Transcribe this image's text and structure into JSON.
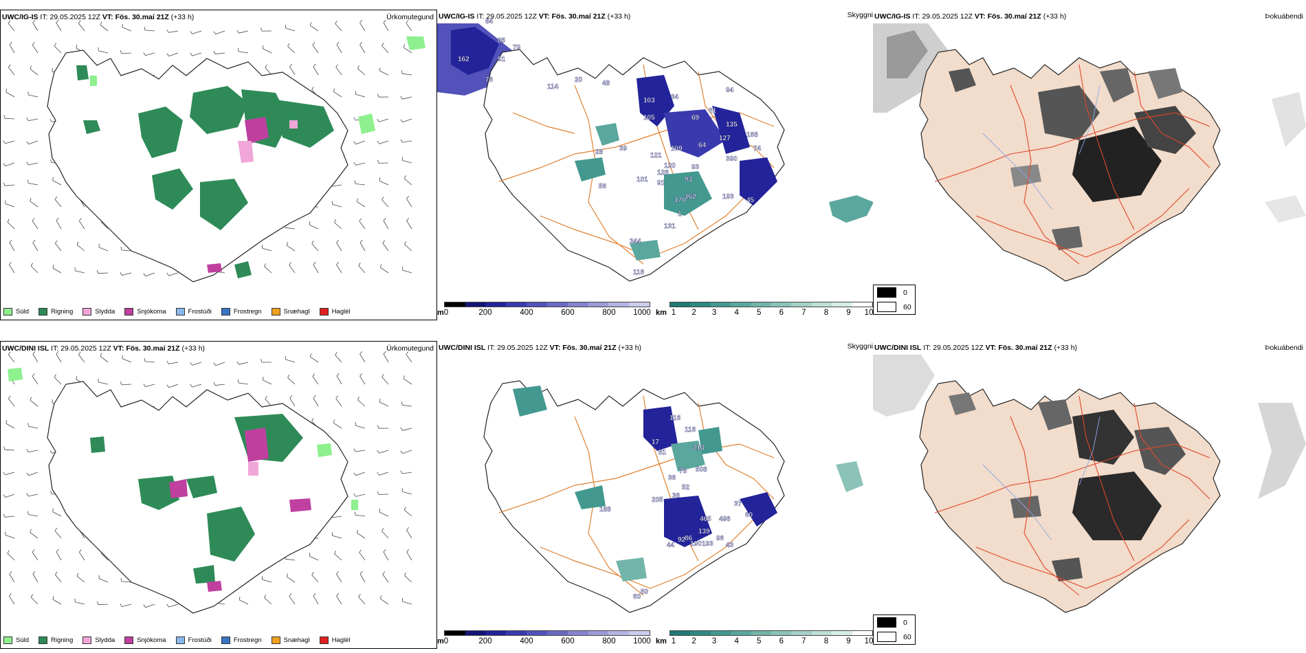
{
  "panels": [
    {
      "id": "precip-top",
      "model": "UWC/IG-IS",
      "it_label": "IT:",
      "it_value": "29.05.2025 12Z",
      "vt_label": "VT:",
      "vt_value": "Fös. 30.maí 21Z",
      "lead": "(+33 h)",
      "right_label": "Úrkomutegund"
    },
    {
      "id": "ceiling-top",
      "model": "UWC/IG-IS",
      "it_label": "IT:",
      "it_value": "29.05.2025 12Z",
      "vt_label": "VT:",
      "vt_value": "Fös. 30.maí 21Z",
      "lead": "(+33 h)",
      "right_label": "Skyggni"
    },
    {
      "id": "fog-top",
      "model": "UWC/IG-IS",
      "it_label": "IT:",
      "it_value": "29.05.2025 12Z",
      "vt_label": "VT:",
      "vt_value": "Fös. 30.maí 21Z",
      "lead": "(+33 h)",
      "right_label": "Þokuábendi"
    },
    {
      "id": "precip-bottom",
      "model": "UWC/DINI ISL",
      "it_label": "IT:",
      "it_value": "29.05.2025 12Z",
      "vt_label": "VT:",
      "vt_value": "Fös. 30.maí 21Z",
      "lead": "(+33 h)",
      "right_label": "Úrkomutegund"
    },
    {
      "id": "ceiling-bottom",
      "model": "UWC/DINI ISL",
      "it_label": "IT:",
      "it_value": "29.05.2025 12Z",
      "vt_label": "VT:",
      "vt_value": "Fös. 30.maí 21Z",
      "lead": "(+33 h)",
      "right_label": "Skyggni"
    },
    {
      "id": "fog-bottom",
      "model": "UWC/DINI ISL",
      "it_label": "IT:",
      "it_value": "29.05.2025 12Z",
      "vt_label": "VT:",
      "vt_value": "Fös. 30.maí 21Z",
      "lead": "(+33 h)",
      "right_label": "Þokuábendi"
    }
  ],
  "precip_legend": [
    {
      "label": "Súld",
      "color": "#8ef08e"
    },
    {
      "label": "Rigning",
      "color": "#2e8b57"
    },
    {
      "label": "Slydda",
      "color": "#f0a6d8"
    },
    {
      "label": "Snjókoma",
      "color": "#c040a0"
    },
    {
      "label": "Frostúði",
      "color": "#8ab8ec"
    },
    {
      "label": "Frostregn",
      "color": "#3a74c4"
    },
    {
      "label": "Snæhagl",
      "color": "#f0a020"
    },
    {
      "label": "Haglél",
      "color": "#e02020"
    }
  ],
  "ceiling_scale": {
    "unit": "m",
    "ticks": [
      "0",
      "200",
      "400",
      "600",
      "800",
      "1000"
    ],
    "colors": [
      "#000000",
      "#141478",
      "#23239a",
      "#3a3aae",
      "#5252ba",
      "#6a6ac4",
      "#8484d0",
      "#9c9cda",
      "#b4b4e4",
      "#ccccee"
    ]
  },
  "visibility_scale": {
    "unit": "km",
    "ticks": [
      "1",
      "2",
      "3",
      "4",
      "5",
      "6",
      "7",
      "8",
      "9",
      "10"
    ],
    "colors": [
      "#1f7a73",
      "#2d8a82",
      "#43998f",
      "#5aa79d",
      "#73b5ab",
      "#8cc3b9",
      "#a5d1c8",
      "#bee0d8",
      "#d7eee8",
      "#ffffff"
    ]
  },
  "fog_legend": [
    {
      "label": "0",
      "color": "#000000"
    },
    {
      "label": "60",
      "color": "#ffffff"
    }
  ],
  "ceiling_labels_top": [
    "84",
    "85",
    "162",
    "91",
    "79",
    "76",
    "114",
    "20",
    "48",
    "103",
    "64",
    "61",
    "94",
    "69",
    "105",
    "135",
    "127",
    "168",
    "74",
    "109",
    "64",
    "390",
    "121",
    "120",
    "93",
    "28",
    "39",
    "126",
    "91",
    "101",
    "56",
    "93",
    "170",
    "162",
    "45",
    "193",
    "131",
    "1",
    "344",
    "116"
  ],
  "ceiling_labels_bottom": [
    "116",
    "81",
    "17",
    "116",
    "508",
    "36",
    "213",
    "78",
    "52",
    "36",
    "188",
    "205",
    "465",
    "37",
    "60",
    "96",
    "139",
    "86",
    "92",
    "496",
    "190",
    "193",
    "43",
    "50",
    "60",
    "44"
  ],
  "colors": {
    "rain": "#2e8b57",
    "snow": "#c040a0",
    "sleet": "#f0a6d8",
    "drizzle": "#8ef08e",
    "ceiling_blue": "#23239a",
    "visibility_teal": "#43998f",
    "road_orange": "#e08030",
    "fog_land": "#f2dccb",
    "fog_road": "#e0482a"
  }
}
